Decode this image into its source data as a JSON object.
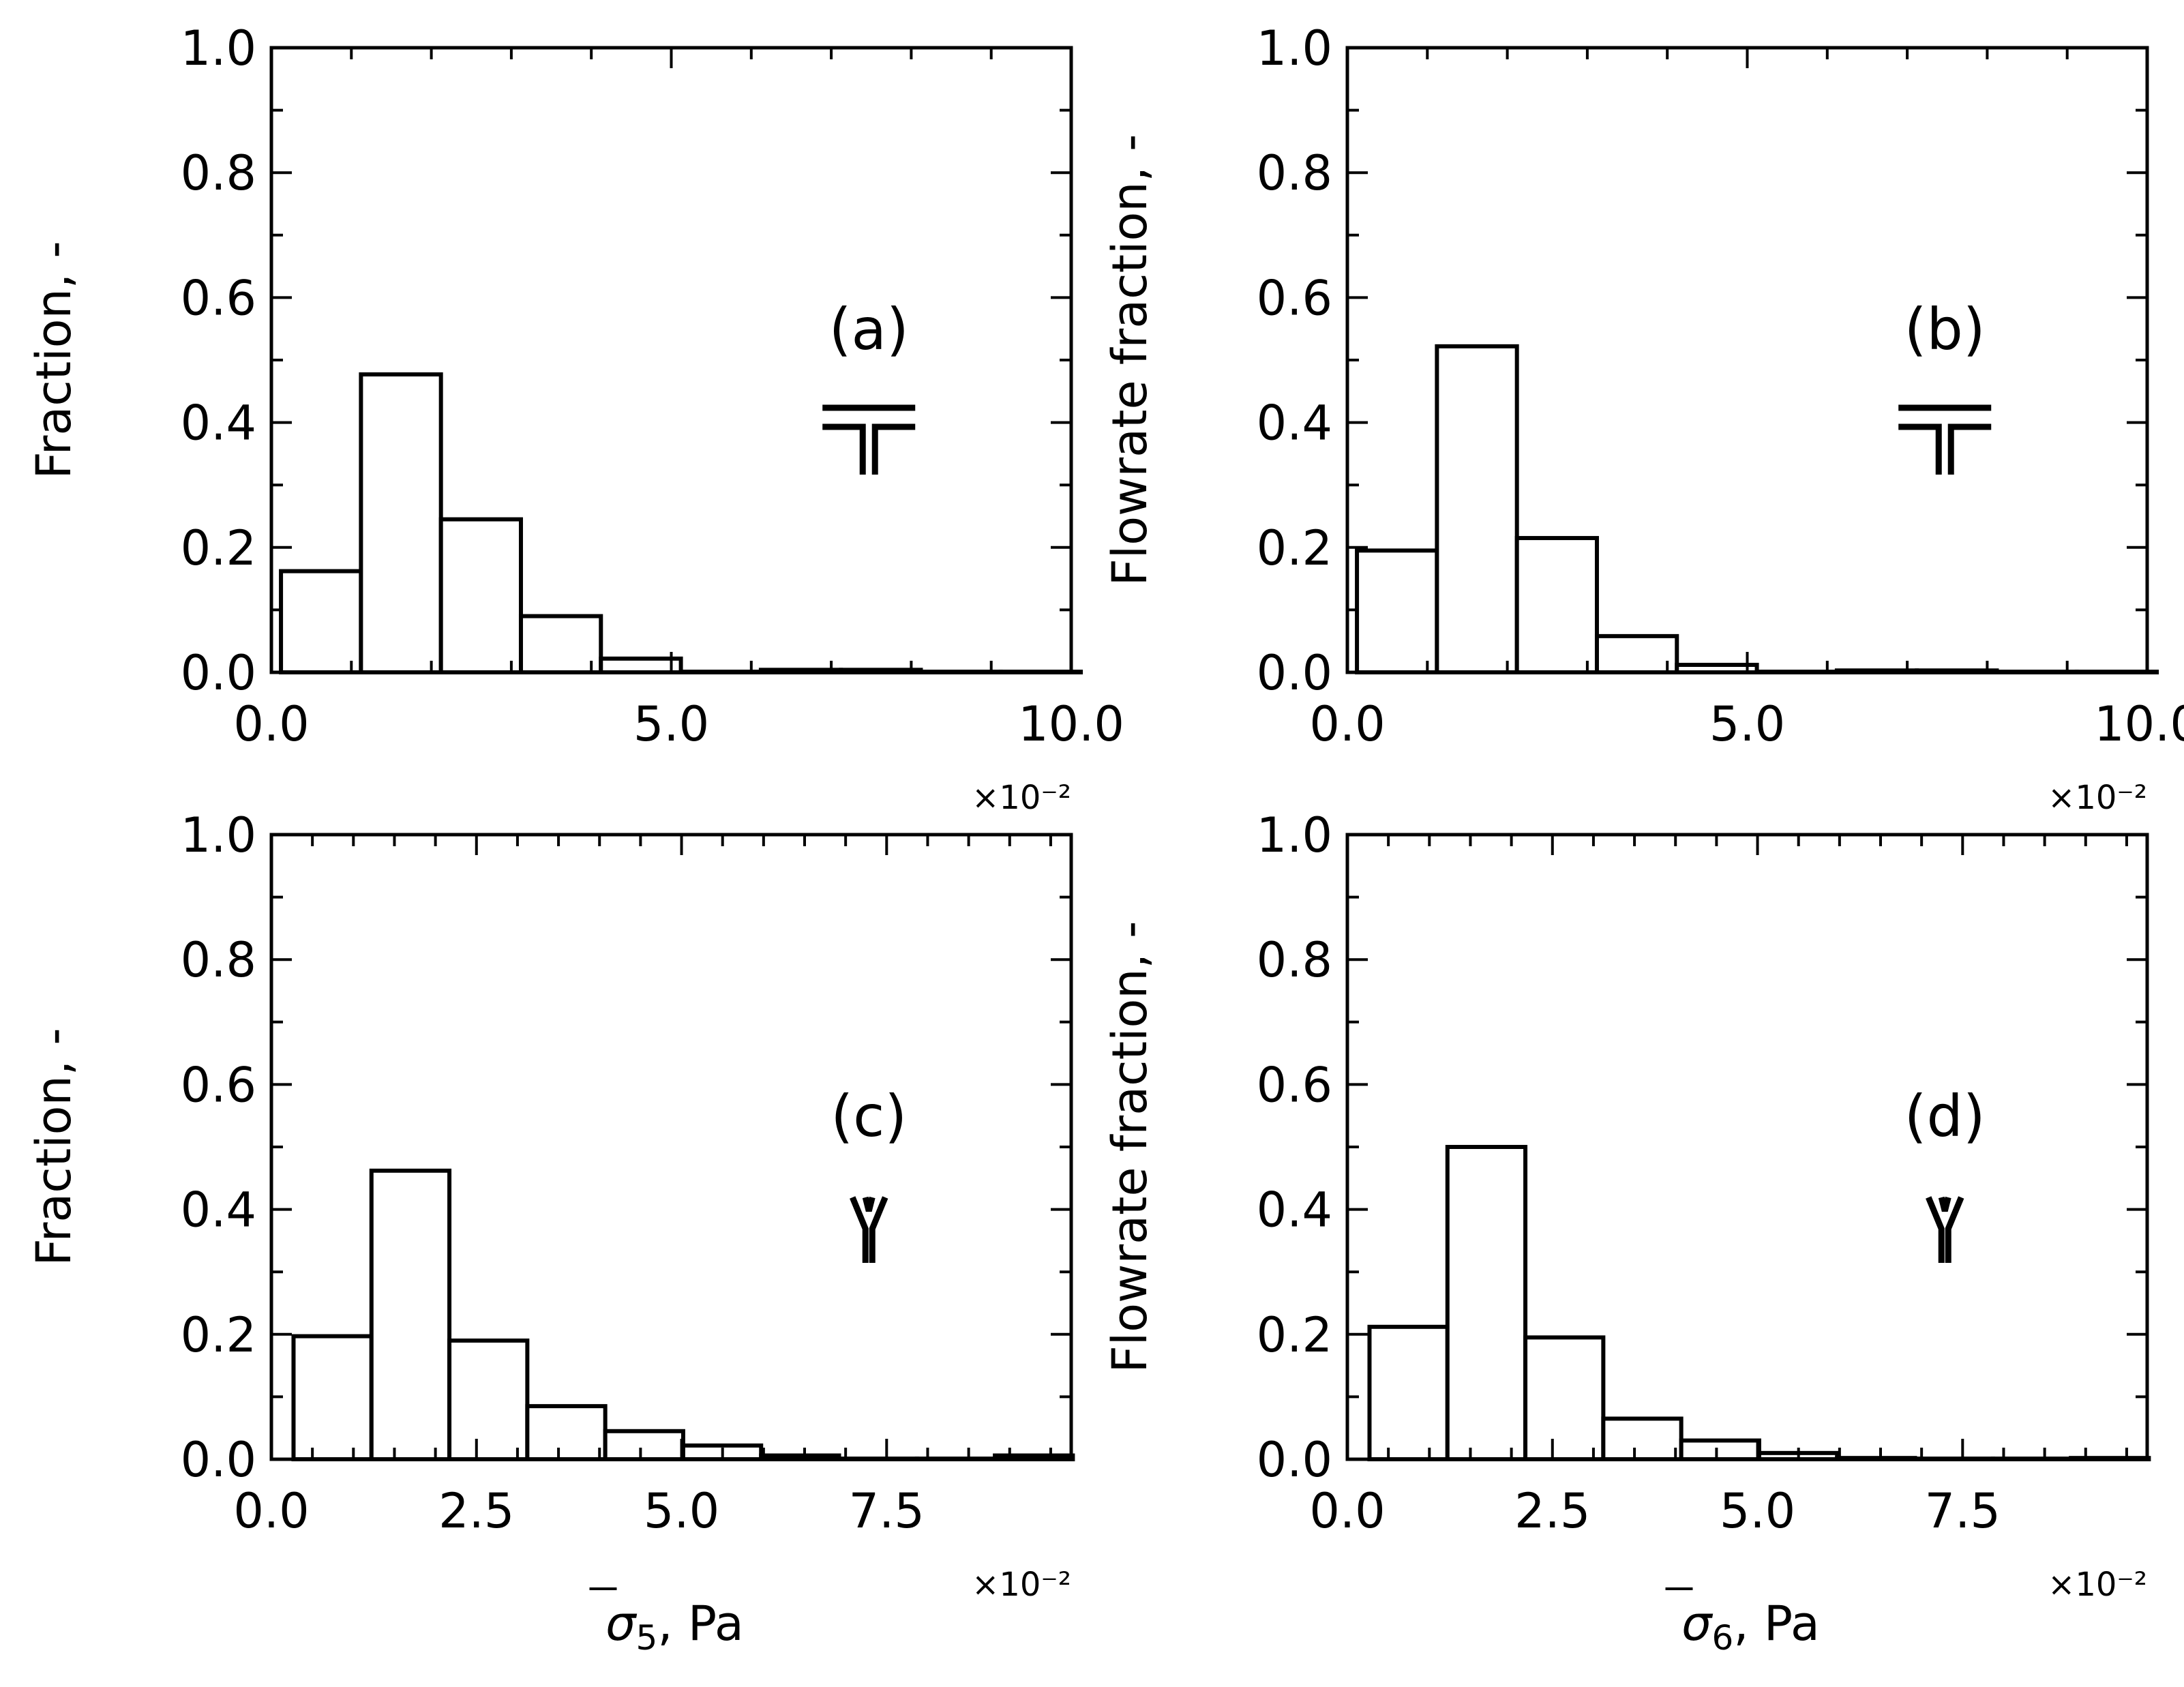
{
  "figure": {
    "background": "#ffffff",
    "stroke_color": "#000000"
  },
  "chart_data": [
    {
      "type": "bar",
      "panel": "(a)",
      "symbol": "tee-junction-icon",
      "ylabel": "Fraction, -",
      "xlabel": "",
      "xlim": [
        0,
        0.1
      ],
      "ylim": [
        0,
        1.0
      ],
      "xticks": [
        0.0,
        0.05,
        0.1
      ],
      "xtick_labels": [
        "0.0",
        "5.0",
        "10.0"
      ],
      "xminor_step": 0.01,
      "yticks": [
        0.0,
        0.2,
        0.4,
        0.6,
        0.8,
        1.0
      ],
      "ytick_labels": [
        "0.0",
        "0.2",
        "0.4",
        "0.6",
        "0.8",
        "1.0"
      ],
      "yminor_step": 0.1,
      "multiplier": "×10⁻²",
      "bin_edges": [
        0.0012,
        0.0112,
        0.0212,
        0.0312,
        0.0412,
        0.0512,
        0.0612,
        0.0712,
        0.0812,
        0.0912,
        0.1012
      ],
      "values": [
        0.162,
        0.477,
        0.245,
        0.09,
        0.022,
        0.001,
        0.004,
        0.004,
        0.001,
        0.001
      ]
    },
    {
      "type": "bar",
      "panel": "(b)",
      "symbol": "tee-junction-icon",
      "ylabel": "Flowrate fraction, -",
      "xlabel": "",
      "xlim": [
        0,
        0.1
      ],
      "ylim": [
        0,
        1.0
      ],
      "xticks": [
        0.0,
        0.05,
        0.1
      ],
      "xtick_labels": [
        "0.0",
        "5.0",
        "10.0"
      ],
      "xminor_step": 0.01,
      "yticks": [
        0.0,
        0.2,
        0.4,
        0.6,
        0.8,
        1.0
      ],
      "ytick_labels": [
        "0.0",
        "0.2",
        "0.4",
        "0.6",
        "0.8",
        "1.0"
      ],
      "yminor_step": 0.1,
      "multiplier": "×10⁻²",
      "bin_edges": [
        0.0012,
        0.0112,
        0.0212,
        0.0312,
        0.0412,
        0.0512,
        0.0612,
        0.0712,
        0.0812,
        0.0912,
        0.1012
      ],
      "values": [
        0.195,
        0.522,
        0.215,
        0.058,
        0.012,
        0.001,
        0.003,
        0.003,
        0.001,
        0.001
      ]
    },
    {
      "type": "bar",
      "panel": "(c)",
      "symbol": "y-junction-icon",
      "ylabel": "Fraction, -",
      "xlabel": "σ̄5, Pa",
      "xlabel_symbol": "σ",
      "xlabel_sub": "5",
      "xlabel_unit": ", Pa",
      "xlim": [
        0,
        0.0975
      ],
      "ylim": [
        0,
        1.0
      ],
      "xticks": [
        0.0,
        0.025,
        0.05,
        0.075
      ],
      "xtick_labels": [
        "0.0",
        "2.5",
        "5.0",
        "7.5"
      ],
      "xminor_step": 0.005,
      "yticks": [
        0.0,
        0.2,
        0.4,
        0.6,
        0.8,
        1.0
      ],
      "ytick_labels": [
        "0.0",
        "0.2",
        "0.4",
        "0.6",
        "0.8",
        "1.0"
      ],
      "yminor_step": 0.1,
      "multiplier": "×10⁻²",
      "bin_edges": [
        0.0027,
        0.0122,
        0.0217,
        0.0312,
        0.0407,
        0.0502,
        0.0597,
        0.0692,
        0.0787,
        0.0882,
        0.0977
      ],
      "values": [
        0.197,
        0.462,
        0.19,
        0.085,
        0.045,
        0.022,
        0.006,
        0.001,
        0.001,
        0.006
      ]
    },
    {
      "type": "bar",
      "panel": "(d)",
      "symbol": "y-junction-icon",
      "ylabel": "Flowrate fraction, -",
      "xlabel": "σ̄6, Pa",
      "xlabel_symbol": "σ",
      "xlabel_sub": "6",
      "xlabel_unit": ", Pa",
      "xlim": [
        0,
        0.0975
      ],
      "ylim": [
        0,
        1.0
      ],
      "xticks": [
        0.0,
        0.025,
        0.05,
        0.075
      ],
      "xtick_labels": [
        "0.0",
        "2.5",
        "5.0",
        "7.5"
      ],
      "xminor_step": 0.005,
      "yticks": [
        0.0,
        0.2,
        0.4,
        0.6,
        0.8,
        1.0
      ],
      "ytick_labels": [
        "0.0",
        "0.2",
        "0.4",
        "0.6",
        "0.8",
        "1.0"
      ],
      "yminor_step": 0.1,
      "multiplier": "×10⁻²",
      "bin_edges": [
        0.0027,
        0.0122,
        0.0217,
        0.0312,
        0.0407,
        0.0502,
        0.0597,
        0.0692,
        0.0787,
        0.0882,
        0.0977
      ],
      "values": [
        0.212,
        0.5,
        0.195,
        0.065,
        0.03,
        0.01,
        0.002,
        0.001,
        0.001,
        0.002
      ]
    }
  ]
}
